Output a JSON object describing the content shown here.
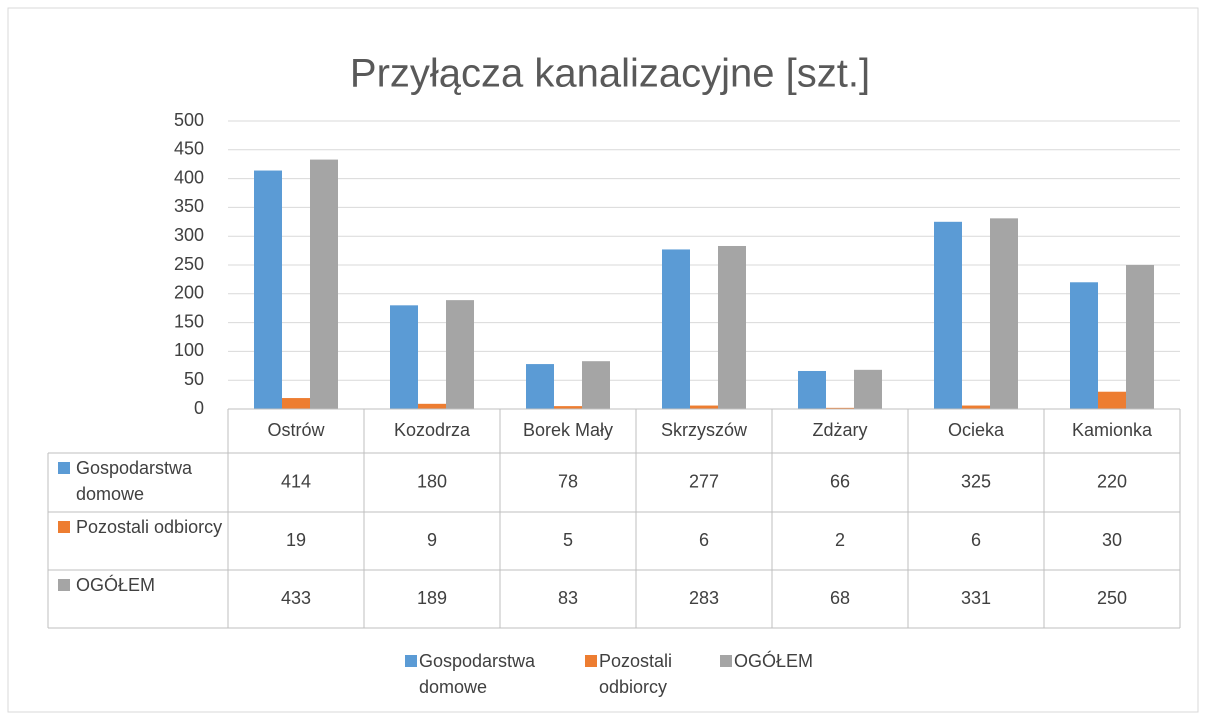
{
  "chart_data": {
    "type": "bar",
    "title": "Przyłącza kanalizacyjne [szt.]",
    "categories": [
      "Ostrów",
      "Kozodrza",
      "Borek Mały",
      "Skrzyszów",
      "Zdżary",
      "Ocieka",
      "Kamionka"
    ],
    "series": [
      {
        "name": "Gospodarstwa domowe",
        "color": "#5b9bd5",
        "values": [
          414,
          180,
          78,
          277,
          66,
          325,
          220
        ]
      },
      {
        "name": "Pozostali odbiorcy",
        "color": "#ed7d31",
        "values": [
          19,
          9,
          5,
          6,
          2,
          6,
          30
        ]
      },
      {
        "name": "OGÓŁEM",
        "color": "#a5a5a5",
        "values": [
          433,
          189,
          83,
          283,
          68,
          331,
          250
        ]
      }
    ],
    "ylim": [
      0,
      500
    ],
    "yticks": [
      0,
      50,
      100,
      150,
      200,
      250,
      300,
      350,
      400,
      450,
      500
    ],
    "grid": true,
    "legend": "bottom",
    "data_table": true
  }
}
